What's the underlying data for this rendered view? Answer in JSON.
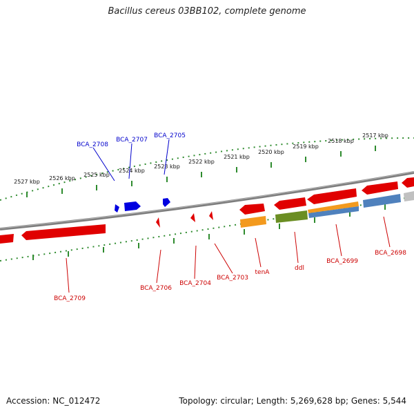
{
  "map": {
    "title": "Bacillus cereus 03BB102, complete genome",
    "accession": "Accession: NC_012472",
    "summary": "Topology: circular; Length: 5,269,628 bp; Genes: 5,544"
  },
  "colors": {
    "backbone": "#8c8c8c",
    "ticks": "#2e8b2e",
    "forward_gene": "#0000e0",
    "reverse_gene": "#e00000",
    "cog_orange": "#f39a1e",
    "cog_olive": "#6b8e23",
    "cog_steel": "#4f81bd",
    "cog_grey": "#c0c0c0",
    "label_forward": "#0000cc",
    "label_reverse": "#cc0000"
  },
  "scale": {
    "unit": "kbp",
    "major_ticks_kbp": [
      2527,
      2526,
      2525,
      2524,
      2523,
      2522,
      2521,
      2520,
      2519,
      2518,
      2517
    ],
    "tick_labels": [
      "2527 kbp",
      "2526 kbp",
      "2525 kbp",
      "2524 kbp",
      "2523 kbp",
      "2522 kbp",
      "2521 kbp",
      "2520 kbp",
      "2519 kbp",
      "2518 kbp",
      "2517 kbp"
    ]
  },
  "genes": {
    "forward_labels": [
      "BCA_2708",
      "BCA_2707",
      "BCA_2705"
    ],
    "reverse_labels": [
      "BCA_2709",
      "BCA_2706",
      "BCA_2704",
      "BCA_2703",
      "tenA",
      "ddl",
      "BCA_2699",
      "BCA_2698"
    ]
  }
}
